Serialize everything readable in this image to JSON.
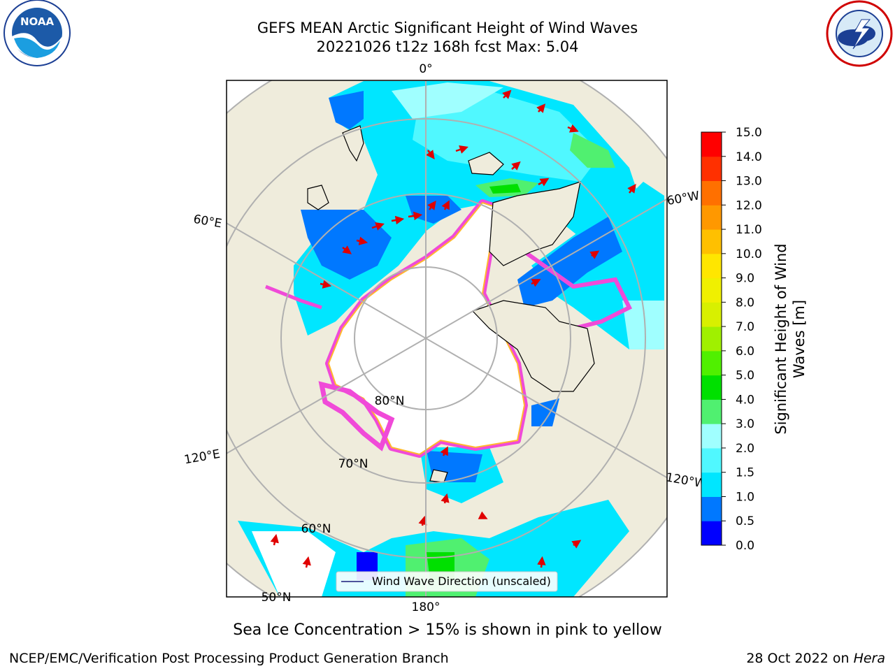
{
  "title": {
    "line1": "GEFS MEAN Arctic Significant Height of Wind Waves",
    "line2": "20221026 t12z 168h fcst   Max: 5.04"
  },
  "logos": {
    "left": {
      "text": "NOAA",
      "ring_text": "NATIONAL OCEANIC AND ATMOSPHERIC ADMINISTRATION · U.S. DEPARTMENT OF COMMERCE"
    },
    "right": {
      "ring_text": "NATIONAL WEATHER SERVICE"
    }
  },
  "map": {
    "projection": "north-polar-stereographic",
    "meridian_labels": [
      "0°",
      "60°E",
      "120°E",
      "180°",
      "120°W",
      "60°W"
    ],
    "parallel_labels": [
      "80°N",
      "70°N",
      "60°N",
      "50°N"
    ],
    "colors": {
      "land": "#efecdc",
      "sea_ice_inner": "#ffffff",
      "sea_ice_edge": "#f04ad8",
      "ice_edge_yellow": "#ffb82e",
      "arrow": "#e00000",
      "grid": "#b0b0b0"
    },
    "legend": {
      "label": "Wind Wave Direction (unscaled)"
    }
  },
  "colorbar": {
    "label": "Significant Height of Wind Waves [m]",
    "label_line1": "Significant Height of Wind",
    "label_line2": "Waves [m]",
    "ticks": [
      "0.0",
      "0.5",
      "1.0",
      "1.5",
      "2.0",
      "3.0",
      "4.0",
      "5.0",
      "6.0",
      "7.0",
      "8.0",
      "9.0",
      "10.0",
      "11.0",
      "12.0",
      "13.0",
      "14.0",
      "15.0"
    ],
    "colors": [
      "#0000ff",
      "#0078ff",
      "#00e6ff",
      "#50f8ff",
      "#a0ffff",
      "#50f070",
      "#00e000",
      "#50f000",
      "#a0f000",
      "#d8f000",
      "#f0f000",
      "#ffe600",
      "#ffc000",
      "#ff9800",
      "#ff7000",
      "#ff3000",
      "#ff0000"
    ]
  },
  "subtitle": "Sea Ice Concentration > 15% is shown in pink to yellow",
  "footer": {
    "left": "NCEP/EMC/Verification Post Processing Product Generation Branch",
    "right_date": "28 Oct 2022 on ",
    "right_host": "Hera"
  }
}
